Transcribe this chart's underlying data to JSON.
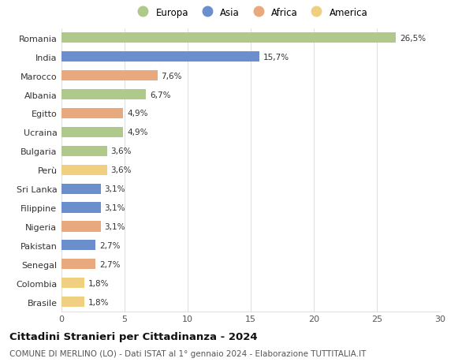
{
  "countries": [
    "Romania",
    "India",
    "Marocco",
    "Albania",
    "Egitto",
    "Ucraina",
    "Bulgaria",
    "Perù",
    "Sri Lanka",
    "Filippine",
    "Nigeria",
    "Pakistan",
    "Senegal",
    "Colombia",
    "Brasile"
  ],
  "values": [
    26.5,
    15.7,
    7.6,
    6.7,
    4.9,
    4.9,
    3.6,
    3.6,
    3.1,
    3.1,
    3.1,
    2.7,
    2.7,
    1.8,
    1.8
  ],
  "labels": [
    "26,5%",
    "15,7%",
    "7,6%",
    "6,7%",
    "4,9%",
    "4,9%",
    "3,6%",
    "3,6%",
    "3,1%",
    "3,1%",
    "3,1%",
    "2,7%",
    "2,7%",
    "1,8%",
    "1,8%"
  ],
  "colors": [
    "#aec98a",
    "#6b8fcc",
    "#e8a97e",
    "#aec98a",
    "#e8a97e",
    "#aec98a",
    "#aec98a",
    "#f0d080",
    "#6b8fcc",
    "#6b8fcc",
    "#e8a97e",
    "#6b8fcc",
    "#e8a97e",
    "#f0d080",
    "#f0d080"
  ],
  "legend_labels": [
    "Europa",
    "Asia",
    "Africa",
    "America"
  ],
  "legend_colors": [
    "#aec98a",
    "#6b8fcc",
    "#e8a97e",
    "#f0d080"
  ],
  "title": "Cittadini Stranieri per Cittadinanza - 2024",
  "subtitle": "COMUNE DI MERLINO (LO) - Dati ISTAT al 1° gennaio 2024 - Elaborazione TUTTITALIA.IT",
  "xlim": [
    0,
    30
  ],
  "xticks": [
    0,
    5,
    10,
    15,
    20,
    25,
    30
  ],
  "background_color": "#ffffff",
  "grid_color": "#e0e0e0",
  "bar_height": 0.55,
  "label_fontsize": 7.5,
  "ytick_fontsize": 8.0,
  "xtick_fontsize": 8.0,
  "legend_fontsize": 8.5,
  "title_fontsize": 9.5,
  "subtitle_fontsize": 7.5
}
